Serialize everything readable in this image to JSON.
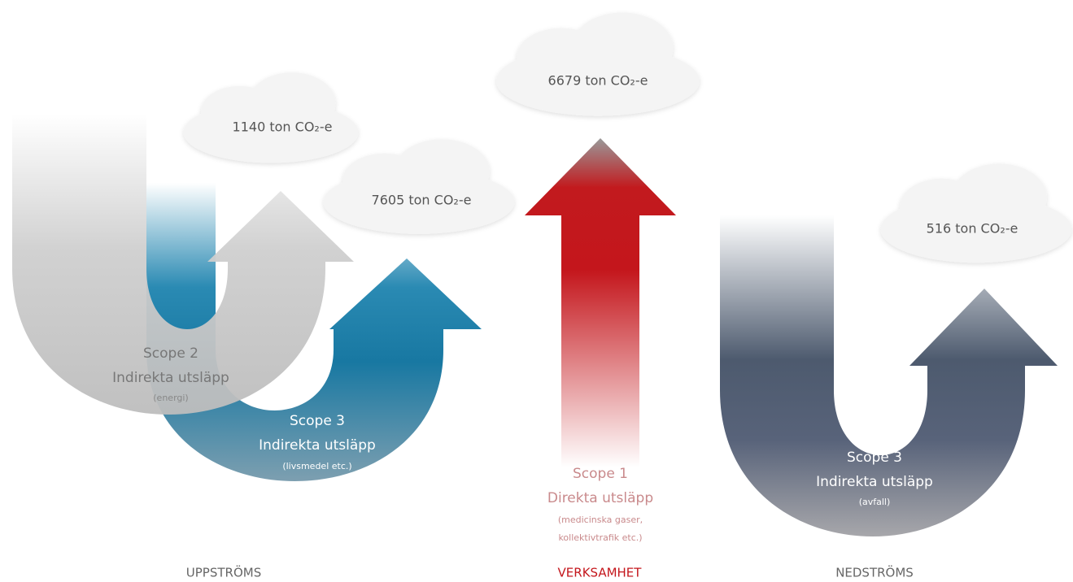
{
  "clouds": [
    {
      "label": "1140 ton CO₂-e"
    },
    {
      "label": "7605 ton CO₂-e"
    },
    {
      "label": "6679 ton CO₂-e"
    },
    {
      "label": "516 ton CO₂-e"
    }
  ],
  "flows": [
    {
      "title": "Scope 2",
      "subtitle": "Indirekta utsläpp",
      "note": [
        "(energi)"
      ]
    },
    {
      "title": "Scope 3",
      "subtitle": "Indirekta utsläpp",
      "note": [
        "(livsmedel etc.)"
      ]
    },
    {
      "title": "Scope 1",
      "subtitle": "Direkta utsläpp",
      "note": [
        "(medicinska gaser,",
        "kollektivtrafik etc.)"
      ]
    },
    {
      "title": "Scope 3",
      "subtitle": "Indirekta utsläpp",
      "note": [
        "(avfall)"
      ]
    }
  ],
  "sections": [
    "UPPSTRÖMS",
    "VERKSAMHET",
    "NEDSTRÖMS"
  ]
}
